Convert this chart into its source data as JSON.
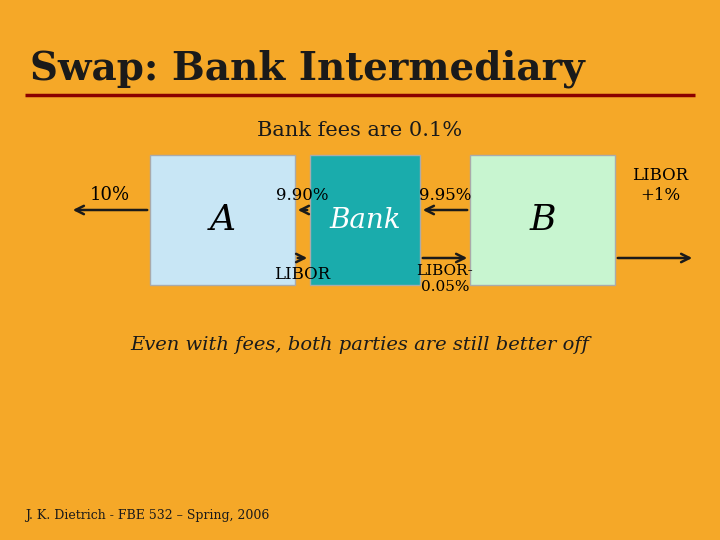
{
  "title": "Swap: Bank Intermediary",
  "bg_color": "#F5A828",
  "title_color": "#1a1a1a",
  "title_fontsize": 28,
  "underline_color": "#8B0000",
  "subtitle": "Bank fees are 0.1%",
  "subtitle_fontsize": 15,
  "box_A_color": "#C8E6F5",
  "box_B_color": "#C8F5D0",
  "box_Bank_color": "#1AACAC",
  "box_label_A": "A",
  "box_label_B": "B",
  "box_label_Bank": "Bank",
  "label_10pct": "10%",
  "label_libor_plus": "LIBOR\n+1%",
  "label_990": "9.90%",
  "label_995": "9.95%",
  "label_libor_bottom_left": "LIBOR",
  "label_libor_bottom_right": "LIBOR-\n0.05%",
  "italic_text": "Even with fees, both parties are still better off",
  "footer": "J. K. Dietrich - FBE 532 – Spring, 2006",
  "arrow_color": "#1a1a1a"
}
